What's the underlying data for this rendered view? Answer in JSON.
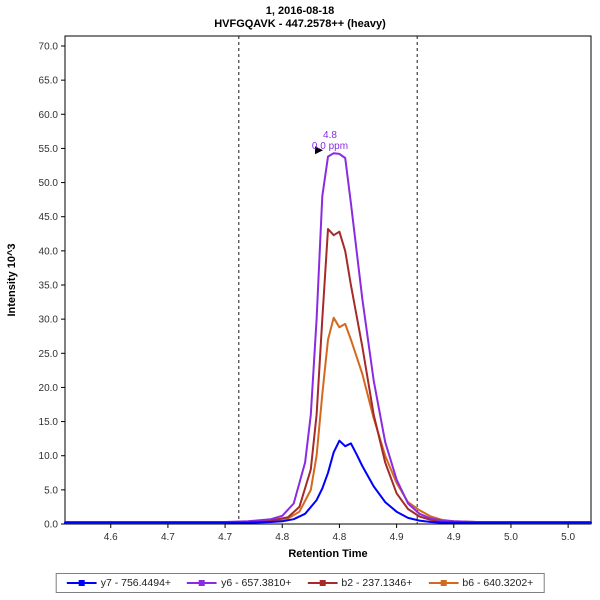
{
  "chart_data": {
    "type": "line",
    "title_line1": "1, 2016-08-18",
    "title_line2": "HVFGQAVK - 447.2578++ (heavy)",
    "title": "1, 2016-08-18 / HVFGQAVK - 447.2578++ (heavy)",
    "xlabel": "Retention Time",
    "ylabel": "Intensity 10^3",
    "xlim": [
      4.56,
      5.02
    ],
    "ylim": [
      0,
      70
    ],
    "grid": false,
    "legend_position": "bottom",
    "xticks": {
      "values": [
        4.6,
        4.65,
        4.7,
        4.75,
        4.8,
        4.85,
        4.9,
        4.95,
        5.0
      ],
      "labels": [
        "4.6",
        "4.7",
        "4.7",
        "4.8",
        "4.8",
        "4.9",
        "4.9",
        "5.0",
        "5.0"
      ]
    },
    "yticks": {
      "values": [
        0,
        5,
        10,
        15,
        20,
        25,
        30,
        35,
        40,
        45,
        50,
        55,
        60,
        65,
        70
      ],
      "labels": [
        "0.0",
        "5.0",
        "10.0",
        "15.0",
        "20.0",
        "25.0",
        "30.0",
        "35.0",
        "40.0",
        "45.0",
        "50.0",
        "55.0",
        "60.0",
        "65.0",
        "70.0"
      ]
    },
    "integration_boundaries": [
      4.712,
      4.868
    ],
    "boundary_style": "dashed",
    "boundary_color": "#1a1a1a",
    "peak_annotation": {
      "rt_label": "4.8",
      "ppm_label": "0.0 ppm",
      "x": 4.79,
      "y": 54.3,
      "color": "#8A2BE2",
      "pointer_color": "#000000"
    },
    "series": [
      {
        "id": "y7",
        "name": "y7 - 756.4494+",
        "color": "#0000FF",
        "points": [
          [
            4.56,
            0.2
          ],
          [
            4.6,
            0.2
          ],
          [
            4.65,
            0.2
          ],
          [
            4.7,
            0.2
          ],
          [
            4.72,
            0.2
          ],
          [
            4.74,
            0.3
          ],
          [
            4.75,
            0.4
          ],
          [
            4.76,
            0.7
          ],
          [
            4.77,
            1.5
          ],
          [
            4.78,
            3.5
          ],
          [
            4.785,
            5.2
          ],
          [
            4.79,
            7.5
          ],
          [
            4.795,
            10.5
          ],
          [
            4.8,
            12.2
          ],
          [
            4.805,
            11.4
          ],
          [
            4.81,
            11.8
          ],
          [
            4.815,
            10.2
          ],
          [
            4.82,
            8.5
          ],
          [
            4.83,
            5.5
          ],
          [
            4.84,
            3.2
          ],
          [
            4.85,
            1.8
          ],
          [
            4.86,
            0.9
          ],
          [
            4.87,
            0.5
          ],
          [
            4.88,
            0.3
          ],
          [
            4.89,
            0.2
          ],
          [
            4.9,
            0.2
          ],
          [
            4.92,
            0.2
          ],
          [
            4.95,
            0.2
          ],
          [
            5.0,
            0.2
          ],
          [
            5.02,
            0.2
          ]
        ]
      },
      {
        "id": "y6",
        "name": "y6 - 657.3810+",
        "color": "#8A2BE2",
        "points": [
          [
            4.56,
            0.3
          ],
          [
            4.6,
            0.3
          ],
          [
            4.65,
            0.3
          ],
          [
            4.7,
            0.3
          ],
          [
            4.72,
            0.4
          ],
          [
            4.74,
            0.7
          ],
          [
            4.75,
            1.2
          ],
          [
            4.76,
            3.0
          ],
          [
            4.77,
            9.0
          ],
          [
            4.775,
            16
          ],
          [
            4.78,
            30
          ],
          [
            4.785,
            48
          ],
          [
            4.79,
            53.8
          ],
          [
            4.795,
            54.3
          ],
          [
            4.8,
            54.2
          ],
          [
            4.805,
            53.6
          ],
          [
            4.81,
            47
          ],
          [
            4.815,
            40
          ],
          [
            4.82,
            33
          ],
          [
            4.83,
            21
          ],
          [
            4.84,
            12
          ],
          [
            4.85,
            6.5
          ],
          [
            4.86,
            3.0
          ],
          [
            4.87,
            1.5
          ],
          [
            4.88,
            0.8
          ],
          [
            4.89,
            0.5
          ],
          [
            4.9,
            0.4
          ],
          [
            4.92,
            0.3
          ],
          [
            4.95,
            0.3
          ],
          [
            5.0,
            0.3
          ],
          [
            5.02,
            0.3
          ]
        ]
      },
      {
        "id": "b2",
        "name": "b2 - 237.1346+",
        "color": "#A52A2A",
        "points": [
          [
            4.56,
            0.2
          ],
          [
            4.6,
            0.2
          ],
          [
            4.65,
            0.2
          ],
          [
            4.7,
            0.2
          ],
          [
            4.72,
            0.3
          ],
          [
            4.74,
            0.5
          ],
          [
            4.755,
            1.0
          ],
          [
            4.765,
            2.5
          ],
          [
            4.775,
            8.0
          ],
          [
            4.78,
            16
          ],
          [
            4.785,
            30
          ],
          [
            4.79,
            43.2
          ],
          [
            4.795,
            42.3
          ],
          [
            4.8,
            42.8
          ],
          [
            4.805,
            40
          ],
          [
            4.81,
            35
          ],
          [
            4.82,
            26
          ],
          [
            4.83,
            16
          ],
          [
            4.84,
            9.0
          ],
          [
            4.85,
            4.5
          ],
          [
            4.86,
            2.2
          ],
          [
            4.87,
            1.1
          ],
          [
            4.88,
            0.6
          ],
          [
            4.89,
            0.3
          ],
          [
            4.9,
            0.2
          ],
          [
            4.92,
            0.2
          ],
          [
            4.95,
            0.2
          ],
          [
            5.0,
            0.2
          ],
          [
            5.02,
            0.2
          ]
        ]
      },
      {
        "id": "b6",
        "name": "b6 - 640.3202+",
        "color": "#D2691E",
        "points": [
          [
            4.56,
            0.2
          ],
          [
            4.6,
            0.2
          ],
          [
            4.65,
            0.2
          ],
          [
            4.7,
            0.2
          ],
          [
            4.72,
            0.3
          ],
          [
            4.74,
            0.4
          ],
          [
            4.755,
            0.8
          ],
          [
            4.765,
            1.8
          ],
          [
            4.775,
            5.0
          ],
          [
            4.78,
            10
          ],
          [
            4.785,
            19
          ],
          [
            4.79,
            27
          ],
          [
            4.795,
            30.2
          ],
          [
            4.8,
            28.8
          ],
          [
            4.805,
            29.3
          ],
          [
            4.81,
            27
          ],
          [
            4.82,
            22
          ],
          [
            4.83,
            15.5
          ],
          [
            4.84,
            10
          ],
          [
            4.85,
            6.0
          ],
          [
            4.86,
            3.2
          ],
          [
            4.87,
            2.0
          ],
          [
            4.88,
            1.1
          ],
          [
            4.89,
            0.6
          ],
          [
            4.9,
            0.4
          ],
          [
            4.92,
            0.3
          ],
          [
            4.95,
            0.2
          ],
          [
            5.0,
            0.2
          ],
          [
            5.02,
            0.2
          ]
        ]
      }
    ]
  }
}
